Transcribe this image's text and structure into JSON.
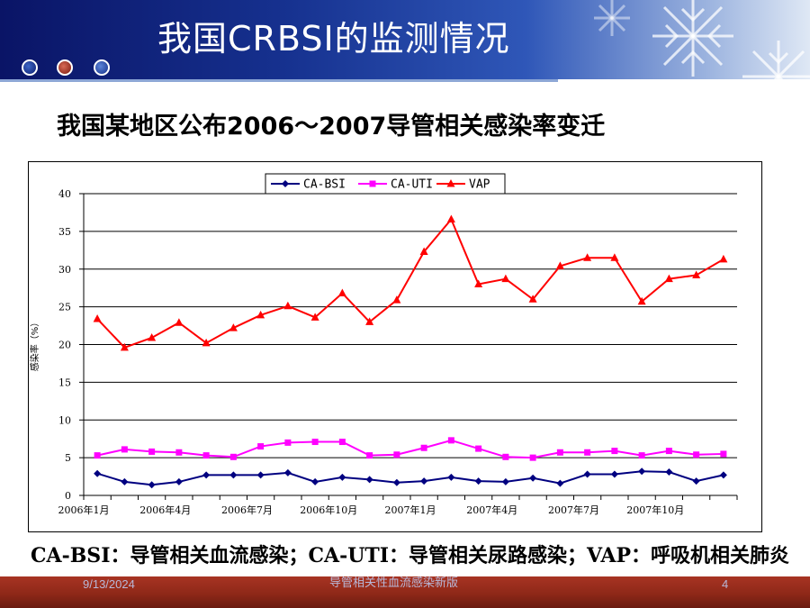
{
  "slide": {
    "title": "我国CRBSI的监测情况",
    "subtitle": "我国某地区公布2006～2007导管相关感染率变迁",
    "footnote": "CA-BSI：导管相关血流感染；CA-UTI：导管相关尿路感染；VAP：呼吸机相关肺炎",
    "footer_date": "9/13/2024",
    "footer_title": "导管相关性血流感染新版",
    "page_number": "4"
  },
  "chart_data": {
    "type": "line",
    "title": "",
    "xlabel": "",
    "ylabel": "感染率（%）",
    "ylim": [
      0,
      40
    ],
    "yticks": [
      "0",
      "5",
      "10",
      "15",
      "20",
      "25",
      "30",
      "35",
      "40"
    ],
    "x": [
      "2006年1月",
      "2006年2月",
      "2006年3月",
      "2006年4月",
      "2006年5月",
      "2006年6月",
      "2006年7月",
      "2006年8月",
      "2006年9月",
      "2006年10月",
      "2006年11月",
      "2006年12月",
      "2007年1月",
      "2007年2月",
      "2007年3月",
      "2007年4月",
      "2007年5月",
      "2007年6月",
      "2007年7月",
      "2007年8月",
      "2007年9月",
      "2007年10月",
      "2007年11月",
      "2007年12月"
    ],
    "xtick_labels": [
      "2006年1月",
      "2006年4月",
      "2006年7月",
      "2006年10月",
      "2007年1月",
      "2007年4月",
      "2007年7月",
      "2007年10月"
    ],
    "grid": true,
    "legend": "top-center",
    "series": [
      {
        "name": "CA-BSI",
        "color": "#000080",
        "marker": "diamond",
        "values": [
          2.9,
          1.8,
          1.4,
          1.8,
          2.7,
          2.7,
          2.7,
          3.0,
          1.8,
          2.4,
          2.1,
          1.7,
          1.9,
          2.4,
          1.9,
          1.8,
          2.3,
          1.6,
          2.8,
          2.8,
          3.2,
          3.1,
          1.9,
          2.7
        ]
      },
      {
        "name": "CA-UTI",
        "color": "#ff00ff",
        "marker": "square",
        "values": [
          5.3,
          6.1,
          5.8,
          5.7,
          5.3,
          5.1,
          6.5,
          7.0,
          7.1,
          7.1,
          5.3,
          5.4,
          6.3,
          7.3,
          6.2,
          5.1,
          5.0,
          5.7,
          5.7,
          5.9,
          5.3,
          5.9,
          5.4,
          5.5
        ]
      },
      {
        "name": "VAP",
        "color": "#ff0000",
        "marker": "triangle",
        "values": [
          23.4,
          19.6,
          20.9,
          22.9,
          20.2,
          22.2,
          23.9,
          25.1,
          23.6,
          26.8,
          23.0,
          25.9,
          32.3,
          36.6,
          28.0,
          28.7,
          26.0,
          30.4,
          31.5,
          31.5,
          25.7,
          28.7,
          29.2,
          31.3
        ]
      }
    ]
  }
}
